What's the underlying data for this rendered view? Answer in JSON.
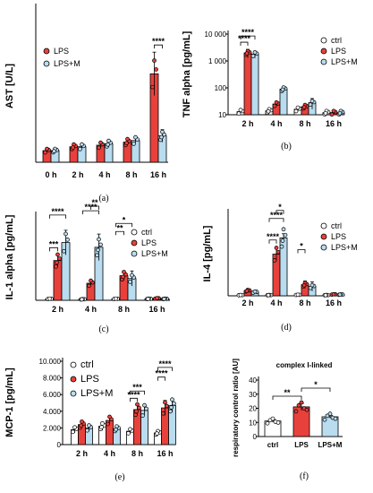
{
  "colors": {
    "ctrl": "#ffffff",
    "lps": "#e8413c",
    "lpsm": "#b9dcef",
    "stroke": "#000000"
  },
  "chart_data": [
    {
      "id": "a",
      "panel_label": "(a)",
      "type": "bar",
      "ylabel": "AST [U/L]",
      "yscale": "linear",
      "ylim": [
        0,
        100
      ],
      "yticks": [],
      "ytick_labels": [],
      "categories": [
        "0 h",
        "2 h",
        "4 h",
        "8 h",
        "16 h"
      ],
      "legend": "inside-left",
      "series": [
        {
          "name": "LPS",
          "values": [
            7.5,
            10,
            11,
            13,
            57
          ],
          "errors": [
            1,
            1,
            2,
            1.5,
            14
          ]
        },
        {
          "name": "LPS+M",
          "values": [
            7.5,
            10,
            12,
            14,
            17
          ],
          "errors": [
            1,
            1,
            2,
            1.5,
            4
          ]
        }
      ],
      "significance": [
        {
          "between": [
            "16 h LPS",
            "16 h LPS+M"
          ],
          "label": "****"
        }
      ]
    },
    {
      "id": "b",
      "panel_label": "(b)",
      "type": "bar",
      "ylabel": "TNF alpha [pg/mL]",
      "yscale": "log",
      "ylim": [
        10,
        10000
      ],
      "yticks": [
        10,
        100,
        1000,
        10000
      ],
      "ytick_labels": [
        "10",
        "100",
        "1 000",
        "10 000"
      ],
      "categories": [
        "2 h",
        "4 h",
        "8 h",
        "16 h"
      ],
      "legend": "top-right",
      "series": [
        {
          "name": "ctrl",
          "values": [
            13,
            14,
            16,
            12
          ],
          "errors": [
            1,
            1,
            3,
            1
          ]
        },
        {
          "name": "LPS",
          "values": [
            2000,
            25,
            20,
            12
          ],
          "errors": [
            700,
            5,
            5,
            1
          ]
        },
        {
          "name": "LPS+M",
          "values": [
            1800,
            90,
            28,
            12
          ],
          "errors": [
            500,
            20,
            12,
            1
          ]
        }
      ],
      "significance": [
        {
          "between": [
            "2 h ctrl",
            "2 h LPS"
          ],
          "label": "****"
        },
        {
          "between": [
            "2 h ctrl",
            "2 h LPS+M"
          ],
          "label": "****"
        }
      ]
    },
    {
      "id": "c",
      "panel_label": "(c)",
      "type": "bar",
      "ylabel": "IL-1 alpha [pg/mL]",
      "yscale": "linear",
      "ylim": [
        0,
        900
      ],
      "yticks": [],
      "ytick_labels": [],
      "categories": [
        "2 h",
        "4 h",
        "8 h",
        "16 h"
      ],
      "legend": "right",
      "series": [
        {
          "name": "ctrl",
          "values": [
            15,
            10,
            15,
            15
          ],
          "errors": [
            5,
            3,
            5,
            5
          ]
        },
        {
          "name": "LPS",
          "values": [
            420,
            180,
            260,
            20
          ],
          "errors": [
            60,
            20,
            50,
            5
          ]
        },
        {
          "name": "LPS+M",
          "values": [
            610,
            560,
            230,
            15
          ],
          "errors": [
            130,
            140,
            80,
            5
          ]
        }
      ],
      "significance": [
        {
          "between": [
            "2 h ctrl",
            "2 h LPS"
          ],
          "label": "***"
        },
        {
          "between": [
            "2 h ctrl",
            "2 h LPS+M"
          ],
          "label": "****"
        },
        {
          "between": [
            "4 h ctrl",
            "4 h LPS+M"
          ],
          "label": "****"
        },
        {
          "between": [
            "4 h LPS",
            "4 h LPS+M"
          ],
          "label": "**"
        },
        {
          "between": [
            "8 h ctrl",
            "8 h LPS"
          ],
          "label": "**"
        },
        {
          "between": [
            "8 h ctrl",
            "8 h LPS+M"
          ],
          "label": "*"
        }
      ]
    },
    {
      "id": "d",
      "panel_label": "(d)",
      "type": "bar",
      "ylabel": "IL-4 [pg/mL]",
      "yscale": "linear",
      "ylim": [
        0,
        1800
      ],
      "yticks": [],
      "ytick_labels": [],
      "categories": [
        "2 h",
        "4 h",
        "8 h",
        "16 h"
      ],
      "legend": "right",
      "series": [
        {
          "name": "ctrl",
          "values": [
            15,
            15,
            20,
            15
          ],
          "errors": [
            5,
            5,
            5,
            5
          ]
        },
        {
          "name": "LPS",
          "values": [
            110,
            900,
            240,
            30
          ],
          "errors": [
            40,
            150,
            80,
            10
          ]
        },
        {
          "name": "LPS+M",
          "values": [
            80,
            1250,
            200,
            25
          ],
          "errors": [
            30,
            90,
            100,
            8
          ]
        }
      ],
      "significance": [
        {
          "between": [
            "4 h ctrl",
            "4 h LPS"
          ],
          "label": "****"
        },
        {
          "between": [
            "4 h ctrl",
            "4 h LPS+M"
          ],
          "label": "****"
        },
        {
          "between": [
            "4 h LPS",
            "4 h LPS+M"
          ],
          "label": "*"
        },
        {
          "between": [
            "8 h ctrl",
            "8 h LPS"
          ],
          "label": "*"
        }
      ]
    },
    {
      "id": "e",
      "panel_label": "(e)",
      "type": "bar",
      "ylabel": "MCP-1 [pg/mL]",
      "yscale": "linear",
      "ylim": [
        0,
        10000
      ],
      "yticks": [
        0,
        2000,
        4000,
        6000,
        8000,
        10000
      ],
      "ytick_labels": [
        "0",
        "2.000",
        "4.000",
        "6.000",
        "8.000",
        "10.000"
      ],
      "categories": [
        "2 h",
        "4 h",
        "8 h",
        "16 h"
      ],
      "legend": "top-left",
      "series": [
        {
          "name": "ctrl",
          "values": [
            1800,
            2200,
            1600,
            1400
          ],
          "errors": [
            400,
            500,
            300,
            300
          ]
        },
        {
          "name": "LPS",
          "values": [
            2400,
            2900,
            4200,
            4400
          ],
          "errors": [
            300,
            500,
            500,
            900
          ]
        },
        {
          "name": "LPS+M",
          "values": [
            2000,
            1900,
            4100,
            4700
          ],
          "errors": [
            400,
            300,
            500,
            800
          ]
        }
      ],
      "significance": [
        {
          "between": [
            "8 h ctrl",
            "8 h LPS"
          ],
          "label": "****"
        },
        {
          "between": [
            "8 h ctrl",
            "8 h LPS+M"
          ],
          "label": "***"
        },
        {
          "between": [
            "16 h ctrl",
            "16 h LPS"
          ],
          "label": "****"
        },
        {
          "between": [
            "16 h ctrl",
            "16 h LPS+M"
          ],
          "label": "****"
        }
      ]
    },
    {
      "id": "f",
      "panel_label": "(f)",
      "type": "bar",
      "title": "complex I-linked",
      "ylabel": "respiratory control ratio [AU]",
      "yscale": "linear",
      "ylim": [
        0,
        40
      ],
      "yticks": [
        0,
        10,
        20,
        30,
        40
      ],
      "ytick_labels": [
        "0",
        "10",
        "20",
        "30",
        "40"
      ],
      "categories": [
        "ctrl",
        "LPS",
        "LPS+M"
      ],
      "values": [
        11,
        21,
        14
      ],
      "errors": [
        1,
        2.5,
        1
      ],
      "significance": [
        {
          "between": [
            "ctrl",
            "LPS"
          ],
          "label": "**"
        },
        {
          "between": [
            "LPS",
            "LPS+M"
          ],
          "label": "*"
        }
      ]
    }
  ]
}
